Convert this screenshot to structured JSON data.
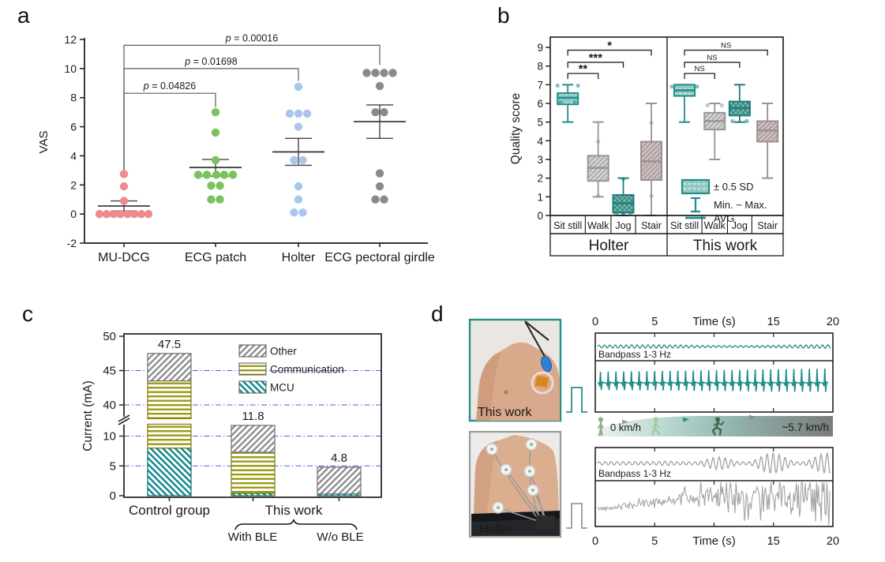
{
  "chart_data": [
    {
      "id": "panel-a",
      "type": "scatter",
      "panel_label": "a",
      "ylabel": "VAS",
      "ylim": [
        -2,
        12
      ],
      "yticks": [
        -2,
        0,
        2,
        4,
        6,
        8,
        10,
        12
      ],
      "categories": [
        "MU-DCG",
        "ECG patch",
        "Holter",
        "ECG pectoral girdle"
      ],
      "groups": [
        {
          "name": "MU-DCG",
          "color": "#ec8c8c",
          "mean": 0.55,
          "err_low": 0.2,
          "err_high": 0.9,
          "points": [
            [
              -31,
              0
            ],
            [
              -22,
              0
            ],
            [
              -13,
              0
            ],
            [
              -4.5,
              0
            ],
            [
              4.5,
              0
            ],
            [
              13,
              0
            ],
            [
              22,
              0
            ],
            [
              31,
              0
            ],
            [
              0,
              0.9
            ],
            [
              0,
              1.9
            ],
            [
              0,
              2.75
            ]
          ]
        },
        {
          "name": "ECG patch",
          "color": "#79c35c",
          "mean": 3.2,
          "err_low": 2.6,
          "err_high": 3.75,
          "points": [
            [
              0,
              7.0
            ],
            [
              0,
              5.6
            ],
            [
              0,
              3.7
            ],
            [
              -22,
              2.7
            ],
            [
              -11,
              2.7
            ],
            [
              1,
              2.7
            ],
            [
              11,
              2.7
            ],
            [
              22,
              2.7
            ],
            [
              -5.5,
              1.95
            ],
            [
              5.5,
              1.95
            ],
            [
              -5.5,
              1.0
            ],
            [
              5.5,
              1.0
            ]
          ]
        },
        {
          "name": "Holter",
          "color": "#a9c6ee",
          "mean": 4.27,
          "err_low": 3.35,
          "err_high": 5.2,
          "points": [
            [
              0,
              8.75
            ],
            [
              -11,
              6.9
            ],
            [
              0,
              6.9
            ],
            [
              11,
              6.9
            ],
            [
              0,
              6.0
            ],
            [
              -5.5,
              3.7
            ],
            [
              5.5,
              3.7
            ],
            [
              0,
              1.9
            ],
            [
              0,
              1.0
            ],
            [
              -5.5,
              0.1
            ],
            [
              5.5,
              0.1
            ]
          ]
        },
        {
          "name": "ECG pectoral girdle",
          "color": "#8a8a8a",
          "mean": 6.35,
          "err_low": 5.2,
          "err_high": 7.5,
          "points": [
            [
              -16.5,
              9.7
            ],
            [
              -5.5,
              9.7
            ],
            [
              5.5,
              9.7
            ],
            [
              16.5,
              9.7
            ],
            [
              0,
              8.8
            ],
            [
              -5.5,
              7.0
            ],
            [
              5.5,
              7.0
            ],
            [
              0,
              2.8
            ],
            [
              0,
              1.9
            ],
            [
              -5.5,
              1.0
            ],
            [
              5.5,
              1.0
            ]
          ]
        }
      ],
      "brackets": [
        {
          "from": 0,
          "to": 1,
          "label": "p = 0.04826",
          "y": 8.3,
          "right_drop": 7.35
        },
        {
          "from": 0,
          "to": 2,
          "label": "p = 0.01698",
          "y": 10.0,
          "right_drop": 9.15
        },
        {
          "from": 0,
          "to": 3,
          "label": "p = 0.00016",
          "y": 11.6,
          "right_drop": 10.25
        }
      ],
      "left_drop": 2.95
    },
    {
      "id": "panel-b",
      "type": "box",
      "panel_label": "b",
      "ylabel": "Quality score",
      "ylim": [
        0,
        9
      ],
      "yticks": [
        0,
        1,
        2,
        3,
        4,
        5,
        6,
        7,
        8,
        9
      ],
      "categories": [
        "Sit still",
        "Walk",
        "Jog",
        "Stair"
      ],
      "group_labels": [
        "Holter",
        "This work"
      ],
      "box_styles": [
        {
          "stroke": "#1e8f8a",
          "pattern": "pat-sit"
        },
        {
          "stroke": "#979797",
          "pattern": "pat-diag-gray"
        },
        {
          "stroke": "#1e7f7b",
          "pattern": "pat-cross-teal"
        },
        {
          "stroke": "#a18d8d",
          "pattern": "pat-diag-mauve"
        }
      ],
      "groups": [
        {
          "name": "Holter",
          "boxes": [
            {
              "category": "Sit still",
              "min": 5,
              "max": 7,
              "q1": 5.95,
              "q3": 6.55,
              "avg": 6.3,
              "dots": [
                [
                  -13,
                  6.95
                ],
                [
                  13,
                  6.95
                ],
                [
                  -9,
                  6.05
                ],
                [
                  9,
                  6.05
                ]
              ]
            },
            {
              "category": "Walk",
              "min": 1,
              "max": 5,
              "q1": 1.85,
              "q3": 3.2,
              "avg": 2.55,
              "dots": [
                [
                  0,
                  3.95
                ],
                [
                  0,
                  1.05
                ]
              ]
            },
            {
              "category": "Jog",
              "min": 0,
              "max": 2,
              "q1": 0.15,
              "q3": 1.1,
              "avg": 0.65,
              "dots": [
                [
                  -9,
                  0.1
                ],
                [
                  0,
                  0.1
                ],
                [
                  9,
                  0.1
                ],
                [
                  0,
                  1.95
                ]
              ]
            },
            {
              "category": "Stair",
              "min": 0,
              "max": 6,
              "q1": 1.9,
              "q3": 3.95,
              "avg": 2.9,
              "dots": [
                [
                  0,
                  4.95
                ],
                [
                  0,
                  1.05
                ]
              ]
            }
          ],
          "sig": [
            {
              "to": 1,
              "label": "**",
              "y": 7.6
            },
            {
              "to": 2,
              "label": "***",
              "y": 8.2
            },
            {
              "to": 3,
              "label": "*",
              "y": 8.85
            }
          ]
        },
        {
          "name": "This work",
          "boxes": [
            {
              "category": "Sit still",
              "min": 5,
              "max": 7,
              "q1": 6.4,
              "q3": 7.0,
              "avg": 6.7,
              "dots": [
                [
                  -16,
                  6.9
                ],
                [
                  16,
                  6.9
                ]
              ]
            },
            {
              "category": "Walk",
              "min": 3,
              "max": 6,
              "q1": 4.6,
              "q3": 5.5,
              "avg": 5.05,
              "dots": [
                [
                  -9,
                  5.9
                ],
                [
                  9,
                  5.9
                ]
              ]
            },
            {
              "category": "Jog",
              "min": 5,
              "max": 7,
              "q1": 5.35,
              "q3": 6.1,
              "avg": 5.75,
              "dots": [
                [
                  -9,
                  5.05
                ],
                [
                  9,
                  5.05
                ]
              ]
            },
            {
              "category": "Stair",
              "min": 2,
              "max": 6,
              "q1": 3.95,
              "q3": 5.05,
              "avg": 4.55,
              "dots": []
            }
          ],
          "sig": [
            {
              "to": 1,
              "label": "NS",
              "y": 7.6
            },
            {
              "to": 2,
              "label": "NS",
              "y": 8.2
            },
            {
              "to": 3,
              "label": "NS",
              "y": 8.85
            }
          ]
        }
      ],
      "legend": {
        "box_label": "± 0.5 SD",
        "whisker_label": "Min. ~ Max.",
        "avg_label": "AVG"
      }
    },
    {
      "id": "panel-c",
      "type": "bar",
      "panel_label": "c",
      "ylabel": "Current (mA)",
      "categories": [
        "Control group",
        "With BLE",
        "W/o BLE"
      ],
      "totals": [
        47.5,
        11.8,
        4.8
      ],
      "total_labels": [
        "47.5",
        "11.8",
        "4.8"
      ],
      "series": [
        {
          "name": "MCU",
          "values": [
            8.0,
            0.4,
            0.3
          ],
          "color": "#0e8689",
          "stroke": "#0b6e71",
          "pattern": "pat-mcu"
        },
        {
          "name": "Communication",
          "values": [
            35.5,
            6.9,
            0
          ],
          "color": "#9c9a15",
          "stroke": "#7e7c10",
          "pattern": "pat-comm"
        },
        {
          "name": "Other",
          "values": [
            4.0,
            4.5,
            4.5
          ],
          "color": "#8e8e8e",
          "stroke": "#6f6f6f",
          "pattern": "pat-other"
        }
      ],
      "legend_order": [
        "Other",
        "Communication",
        "MCU"
      ],
      "axis_break": {
        "low_max": 12,
        "high_min": 38
      },
      "yticks_low": [
        0,
        5,
        10
      ],
      "yticks_high": [
        40,
        45,
        50
      ],
      "gridlines": [
        5,
        10,
        40,
        45
      ],
      "grid_color": "#3b3bd1",
      "bottom": {
        "control": "Control group",
        "group": "This work",
        "subs": [
          "With BLE",
          "W/o BLE"
        ]
      }
    },
    {
      "id": "panel-d",
      "type": "line",
      "panel_label": "d",
      "photos": [
        {
          "label": "This work",
          "border_color": "#2a8f8a"
        },
        {
          "label": "Holter",
          "border_color": "#9a9a9a"
        }
      ],
      "axis": {
        "title": "Time (s)",
        "range": [
          0,
          20
        ],
        "ticks": [
          0,
          5,
          10,
          15,
          20
        ],
        "tick_labels": [
          "0",
          "5",
          "Time (s)",
          "15",
          "20"
        ]
      },
      "traces": [
        {
          "name": "this-work-bandpass",
          "label": "Bandpass 1-3 Hz",
          "color": "#1f8e89"
        },
        {
          "name": "this-work-ecg",
          "color": "#1f8e89"
        },
        {
          "name": "holter-bandpass",
          "label": "Bandpass 1-3 Hz",
          "color": "#9b9b9b"
        },
        {
          "name": "holter-ecg",
          "color": "#a3a3a3"
        }
      ],
      "speed_bar": {
        "start_label": "0 km/h",
        "end_label": "~5.7 km/h"
      }
    }
  ]
}
